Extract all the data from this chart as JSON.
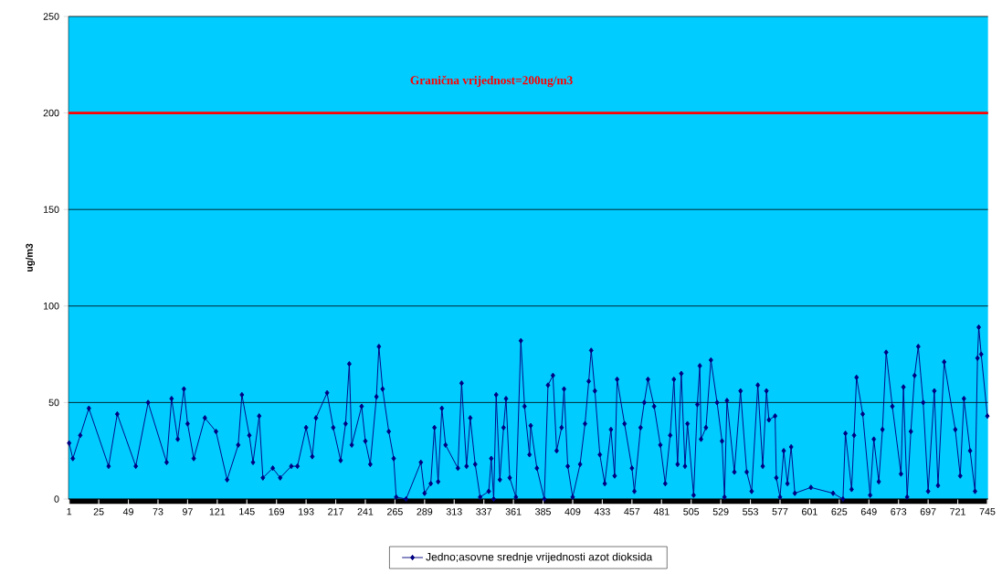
{
  "chart_data": {
    "type": "line",
    "ylabel": "ug/m3",
    "x": [
      1,
      4,
      10,
      17,
      33,
      40,
      55,
      65,
      80,
      84,
      89,
      94,
      97,
      102,
      111,
      120,
      129,
      138,
      141,
      147,
      150,
      155,
      158,
      166,
      172,
      181,
      186,
      193,
      198,
      201,
      210,
      215,
      221,
      225,
      228,
      230,
      238,
      241,
      245,
      250,
      252,
      255,
      260,
      264,
      266,
      274,
      286,
      289,
      294,
      297,
      300,
      303,
      306,
      316,
      319,
      323,
      326,
      330,
      334,
      341,
      343,
      345,
      347,
      350,
      353,
      355,
      358,
      363,
      367,
      370,
      374,
      375,
      380,
      386,
      389,
      393,
      396,
      400,
      402,
      405,
      409,
      415,
      419,
      422,
      424,
      427,
      431,
      435,
      440,
      443,
      445,
      451,
      457,
      459,
      464,
      467,
      470,
      475,
      480,
      484,
      488,
      491,
      494,
      497,
      500,
      502,
      507,
      510,
      512,
      513,
      517,
      521,
      526,
      530,
      532,
      534,
      540,
      545,
      550,
      554,
      559,
      563,
      566,
      568,
      573,
      574,
      577,
      580,
      583,
      586,
      589,
      602,
      620,
      628,
      630,
      635,
      637,
      639,
      644,
      650,
      653,
      657,
      660,
      663,
      668,
      675,
      677,
      680,
      683,
      686,
      689,
      693,
      697,
      702,
      705,
      710,
      719,
      723,
      726,
      731,
      735,
      737,
      738,
      740,
      745
    ],
    "series": [
      {
        "name": "Jedno;asovne srednje vrijednosti azot dioksida",
        "color": "#000080",
        "values": [
          29,
          21,
          33,
          47,
          17,
          44,
          17,
          50,
          19,
          52,
          31,
          57,
          39,
          21,
          42,
          35,
          10,
          28,
          54,
          33,
          19,
          43,
          11,
          16,
          11,
          17,
          17,
          37,
          22,
          42,
          55,
          37,
          20,
          39,
          70,
          28,
          48,
          30,
          18,
          53,
          79,
          57,
          35,
          21,
          1,
          0,
          19,
          3,
          8,
          37,
          9,
          47,
          28,
          16,
          60,
          17,
          42,
          18,
          1,
          4,
          21,
          0,
          54,
          10,
          37,
          52,
          11,
          1,
          82,
          48,
          23,
          38,
          16,
          0,
          59,
          64,
          25,
          37,
          57,
          17,
          1,
          18,
          39,
          61,
          77,
          56,
          23,
          8,
          36,
          12,
          62,
          39,
          16,
          4,
          37,
          50,
          62,
          48,
          28,
          8,
          33,
          62,
          18,
          65,
          17,
          39,
          2,
          49,
          69,
          31,
          37,
          72,
          50,
          30,
          1,
          51,
          14,
          56,
          14,
          4,
          59,
          17,
          56,
          41,
          43,
          11,
          1,
          25,
          8,
          27,
          3,
          6,
          3,
          0,
          34,
          5,
          33,
          63,
          44,
          2,
          31,
          9,
          36,
          76,
          48,
          13,
          58,
          1,
          35,
          64,
          79,
          50,
          4,
          56,
          7,
          71,
          36,
          12,
          52,
          25,
          4,
          73,
          89,
          75,
          43
        ]
      }
    ],
    "ylim": [
      0,
      250
    ],
    "yticks": [
      0,
      50,
      100,
      150,
      200,
      250
    ],
    "xlim": [
      0.5,
      745.5
    ],
    "xticks": [
      1,
      25,
      49,
      73,
      97,
      121,
      145,
      169,
      193,
      217,
      241,
      265,
      289,
      313,
      337,
      361,
      385,
      409,
      433,
      457,
      481,
      505,
      529,
      553,
      577,
      601,
      625,
      649,
      673,
      697,
      721,
      745
    ],
    "ref_lines": [
      {
        "axis": "y",
        "value": 200,
        "label": "Granična vrijednost=200ug/m3",
        "color": "#ff0000"
      }
    ],
    "grid": "y",
    "legend": "bottom",
    "marker": "diamond",
    "line_style": "solid"
  }
}
